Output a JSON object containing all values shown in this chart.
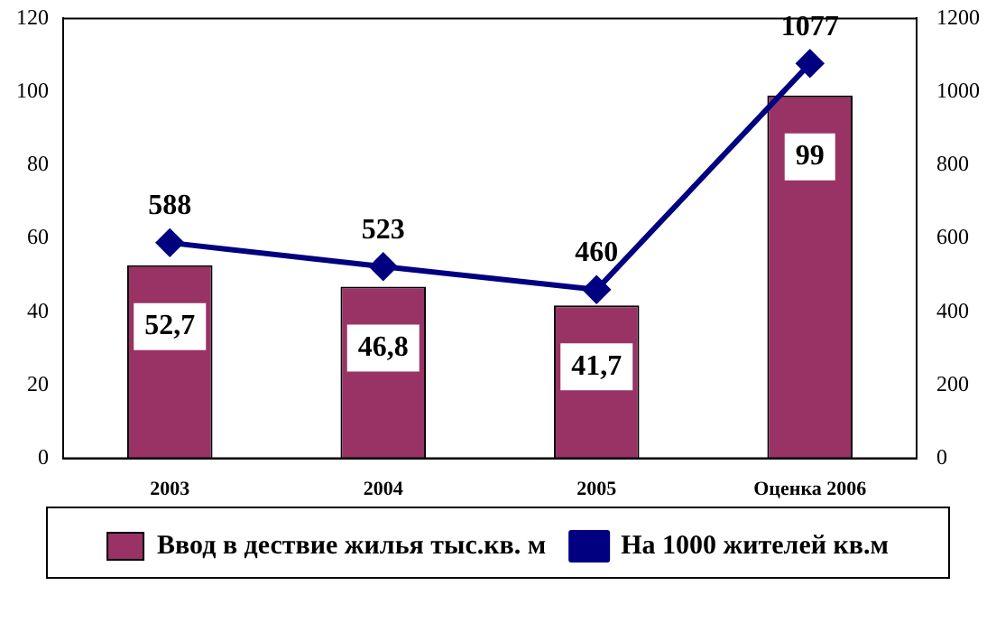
{
  "chart_data": {
    "type": "bar",
    "categories": [
      "2003",
      "2004",
      "2005",
      "Оценка 2006"
    ],
    "series": [
      {
        "name": "Ввод в дествие жилья тыс.кв. м",
        "color": "#993366",
        "values": [
          52.7,
          46.8,
          41.7,
          99
        ],
        "value_labels": [
          "52,7",
          "46,8",
          "41,7",
          "99"
        ]
      },
      {
        "name": "На 1000 жителей кв.м",
        "type": "line",
        "axis": "y2",
        "color": "#000080",
        "values": [
          588,
          523,
          460,
          1077
        ],
        "value_labels": [
          "588",
          "523",
          "460",
          "1077"
        ],
        "marker": "diamond",
        "line_style": "solid"
      }
    ],
    "ylim": [
      0,
      120
    ],
    "yticks": [
      0,
      20,
      40,
      60,
      80,
      100,
      120
    ],
    "y2lim": [
      0,
      1200
    ],
    "y2ticks": [
      0,
      200,
      400,
      600,
      800,
      1000,
      1200
    ],
    "legend": "bottom",
    "grid": false
  }
}
